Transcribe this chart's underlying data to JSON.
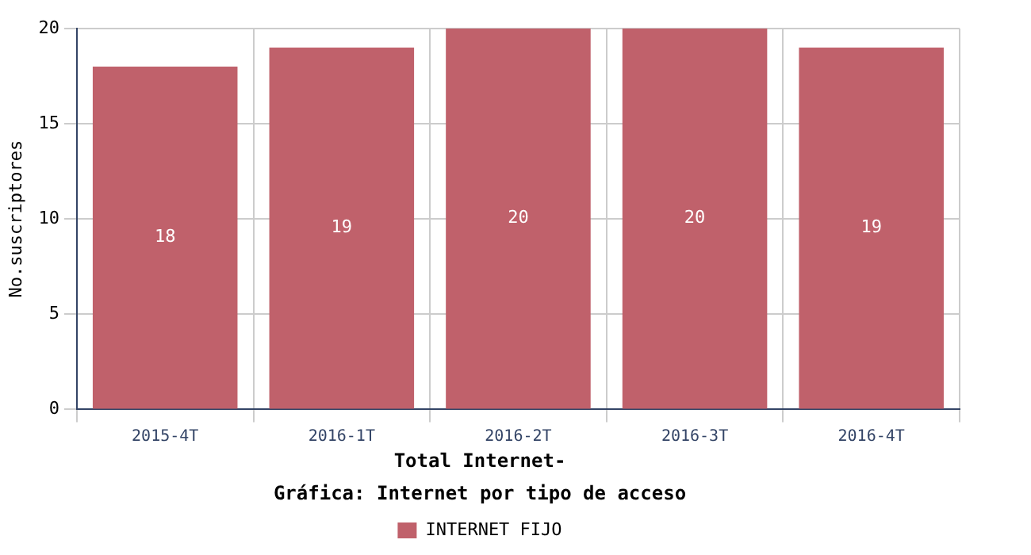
{
  "chart_data": {
    "type": "bar",
    "title": "Gráfica: Internet por tipo de acceso",
    "subtitle": "Total Internet-",
    "ylabel": "No.suscriptores",
    "categories": [
      "2015-4T",
      "2016-1T",
      "2016-2T",
      "2016-3T",
      "2016-4T"
    ],
    "series": [
      {
        "name": "INTERNET FIJO",
        "color": "#c0616b",
        "values": [
          18,
          19,
          20,
          20,
          19
        ]
      }
    ],
    "ylim": [
      0,
      20
    ],
    "yticks": [
      0,
      5,
      10,
      15,
      20
    ],
    "grid": true,
    "legend": "bottom",
    "data_labels": true
  }
}
